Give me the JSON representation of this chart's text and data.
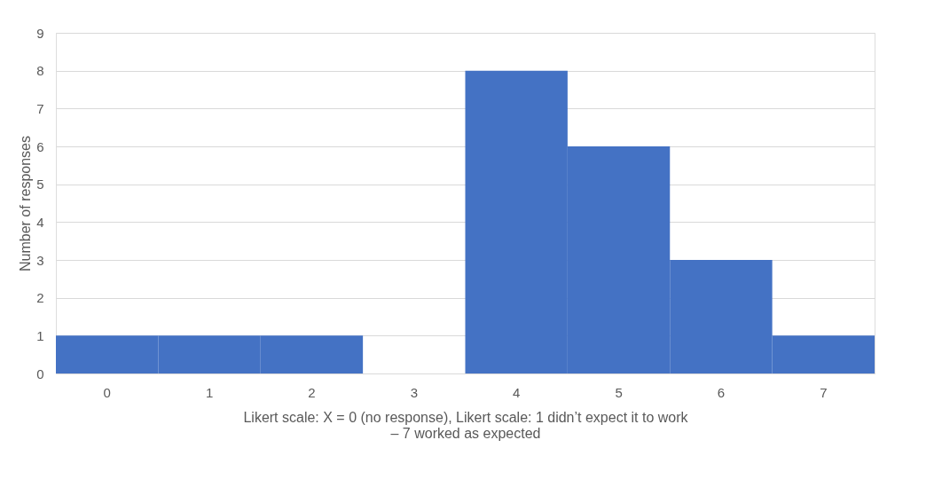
{
  "chart_data": {
    "type": "bar",
    "xlabel": "Likert scale: X = 0 (no response), Likert scale: 1 didn’t expect it to work – 7 worked as expected",
    "ylabel": "Number of responses",
    "categories": [
      "0",
      "1",
      "2",
      "3",
      "4",
      "5",
      "6",
      "7"
    ],
    "values": [
      1,
      1,
      1,
      0,
      8,
      6,
      3,
      1
    ],
    "color": "#4472c4",
    "ylim": [
      0,
      9
    ],
    "yticks": [
      0,
      1,
      2,
      3,
      4,
      5,
      6,
      7,
      8,
      9
    ],
    "grid": "y"
  }
}
